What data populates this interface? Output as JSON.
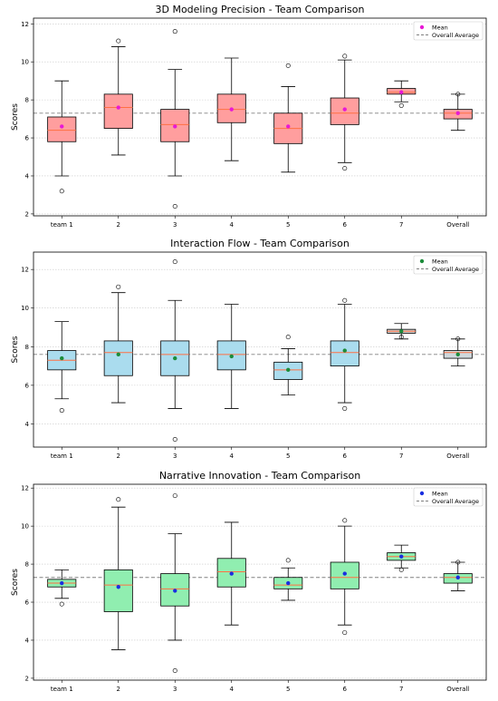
{
  "chart_data": [
    {
      "type": "box",
      "title": "3D Modeling Precision - Team Comparison",
      "ylabel": "Scores",
      "xlabel": "",
      "categories": [
        "team 1",
        "2",
        "3",
        "4",
        "5",
        "6",
        "7",
        "Overall"
      ],
      "ylim": [
        1.9,
        12.3
      ],
      "yticks": [
        2,
        4,
        6,
        8,
        10,
        12
      ],
      "box_color": "#ff9e9e",
      "mean_color": "#e81ad6",
      "median_color": "#ff7043",
      "overall_average": 7.3,
      "grid": "horizontal-dotted",
      "legend_position": "top-right",
      "legend": {
        "mean_label": "Mean",
        "average_label": "Overall Average"
      },
      "boxes": [
        {
          "whislo": 4.0,
          "q1": 5.8,
          "med": 6.4,
          "q3": 7.1,
          "whishi": 9.0,
          "mean": 6.6,
          "fliers": [
            3.2
          ]
        },
        {
          "whislo": 5.1,
          "q1": 6.5,
          "med": 7.6,
          "q3": 8.3,
          "whishi": 10.8,
          "mean": 7.6,
          "fliers": [
            11.1
          ]
        },
        {
          "whislo": 4.0,
          "q1": 5.8,
          "med": 6.7,
          "q3": 7.5,
          "whishi": 9.6,
          "mean": 6.6,
          "fliers": [
            11.6,
            2.4
          ]
        },
        {
          "whislo": 4.8,
          "q1": 6.8,
          "med": 7.5,
          "q3": 8.3,
          "whishi": 10.2,
          "mean": 7.5,
          "fliers": []
        },
        {
          "whislo": 4.2,
          "q1": 5.7,
          "med": 6.5,
          "q3": 7.3,
          "whishi": 8.7,
          "mean": 6.6,
          "fliers": [
            9.8
          ]
        },
        {
          "whislo": 4.7,
          "q1": 6.7,
          "med": 7.3,
          "q3": 8.1,
          "whishi": 10.1,
          "mean": 7.5,
          "fliers": [
            10.3,
            4.4
          ]
        },
        {
          "whislo": 7.9,
          "q1": 8.3,
          "med": 8.4,
          "q3": 8.6,
          "whishi": 9.0,
          "mean": 8.4,
          "fliers": [
            7.7
          ]
        },
        {
          "whislo": 6.4,
          "q1": 7.0,
          "med": 7.3,
          "q3": 7.5,
          "whishi": 8.3,
          "mean": 7.3,
          "fliers": [
            8.3
          ]
        }
      ]
    },
    {
      "type": "box",
      "title": "Interaction Flow - Team Comparison",
      "ylabel": "Scores",
      "xlabel": "",
      "categories": [
        "team 1",
        "2",
        "3",
        "4",
        "5",
        "6",
        "7",
        "Overall"
      ],
      "ylim": [
        2.8,
        12.9
      ],
      "yticks": [
        4,
        6,
        8,
        10,
        12
      ],
      "box_color": "#aadcee",
      "mean_color": "#1c8c3a",
      "median_color": "#ff7043",
      "overall_average": 7.6,
      "grid": "horizontal-dotted",
      "legend_position": "top-right",
      "legend": {
        "mean_label": "Mean",
        "average_label": "Overall Average"
      },
      "boxes": [
        {
          "whislo": 5.3,
          "q1": 6.8,
          "med": 7.3,
          "q3": 7.8,
          "whishi": 9.3,
          "mean": 7.4,
          "fliers": [
            4.7
          ]
        },
        {
          "whislo": 5.1,
          "q1": 6.5,
          "med": 7.7,
          "q3": 8.3,
          "whishi": 10.8,
          "mean": 7.6,
          "fliers": [
            11.1
          ]
        },
        {
          "whislo": 4.8,
          "q1": 6.5,
          "med": 7.6,
          "q3": 8.3,
          "whishi": 10.4,
          "mean": 7.4,
          "fliers": [
            12.4,
            3.2
          ]
        },
        {
          "whislo": 4.8,
          "q1": 6.8,
          "med": 7.6,
          "q3": 8.3,
          "whishi": 10.2,
          "mean": 7.5,
          "fliers": []
        },
        {
          "whislo": 5.5,
          "q1": 6.3,
          "med": 6.8,
          "q3": 7.2,
          "whishi": 7.9,
          "mean": 6.8,
          "fliers": [
            8.5
          ]
        },
        {
          "whislo": 5.1,
          "q1": 7.0,
          "med": 7.7,
          "q3": 8.3,
          "whishi": 10.2,
          "mean": 7.8,
          "fliers": [
            10.4,
            4.8
          ]
        },
        {
          "whislo": 8.4,
          "q1": 8.7,
          "med": 8.8,
          "q3": 8.9,
          "whishi": 9.2,
          "mean": 8.8,
          "fliers": [
            8.5
          ]
        },
        {
          "whislo": 7.0,
          "q1": 7.4,
          "med": 7.7,
          "q3": 7.8,
          "whishi": 8.4,
          "mean": 7.6,
          "fliers": [
            8.4
          ]
        }
      ]
    },
    {
      "type": "box",
      "title": "Narrative Innovation - Team Comparison",
      "ylabel": "Scores",
      "xlabel": "",
      "categories": [
        "team 1",
        "2",
        "3",
        "4",
        "5",
        "6",
        "7",
        "Overall"
      ],
      "ylim": [
        1.9,
        12.2
      ],
      "yticks": [
        2,
        4,
        6,
        8,
        10,
        12
      ],
      "box_color": "#90eeb0",
      "mean_color": "#1a2ee0",
      "median_color": "#ff7043",
      "overall_average": 7.3,
      "grid": "horizontal-dotted",
      "legend_position": "top-right",
      "legend": {
        "mean_label": "Mean",
        "average_label": "Overall Average"
      },
      "boxes": [
        {
          "whislo": 6.2,
          "q1": 6.8,
          "med": 7.0,
          "q3": 7.2,
          "whishi": 7.7,
          "mean": 7.0,
          "fliers": [
            5.9
          ]
        },
        {
          "whislo": 3.5,
          "q1": 5.5,
          "med": 6.9,
          "q3": 7.7,
          "whishi": 11.0,
          "mean": 6.8,
          "fliers": [
            11.4
          ]
        },
        {
          "whislo": 4.0,
          "q1": 5.8,
          "med": 6.7,
          "q3": 7.5,
          "whishi": 9.6,
          "mean": 6.6,
          "fliers": [
            11.6,
            2.4
          ]
        },
        {
          "whislo": 4.8,
          "q1": 6.8,
          "med": 7.6,
          "q3": 8.3,
          "whishi": 10.2,
          "mean": 7.5,
          "fliers": []
        },
        {
          "whislo": 6.1,
          "q1": 6.7,
          "med": 6.9,
          "q3": 7.3,
          "whishi": 7.8,
          "mean": 7.0,
          "fliers": [
            8.2
          ]
        },
        {
          "whislo": 4.8,
          "q1": 6.7,
          "med": 7.3,
          "q3": 8.1,
          "whishi": 10.0,
          "mean": 7.5,
          "fliers": [
            10.3,
            4.4
          ]
        },
        {
          "whislo": 7.8,
          "q1": 8.2,
          "med": 8.4,
          "q3": 8.6,
          "whishi": 9.0,
          "mean": 8.4,
          "fliers": [
            7.7
          ]
        },
        {
          "whislo": 6.6,
          "q1": 7.0,
          "med": 7.3,
          "q3": 7.5,
          "whishi": 8.1,
          "mean": 7.3,
          "fliers": [
            8.1
          ]
        }
      ]
    }
  ]
}
